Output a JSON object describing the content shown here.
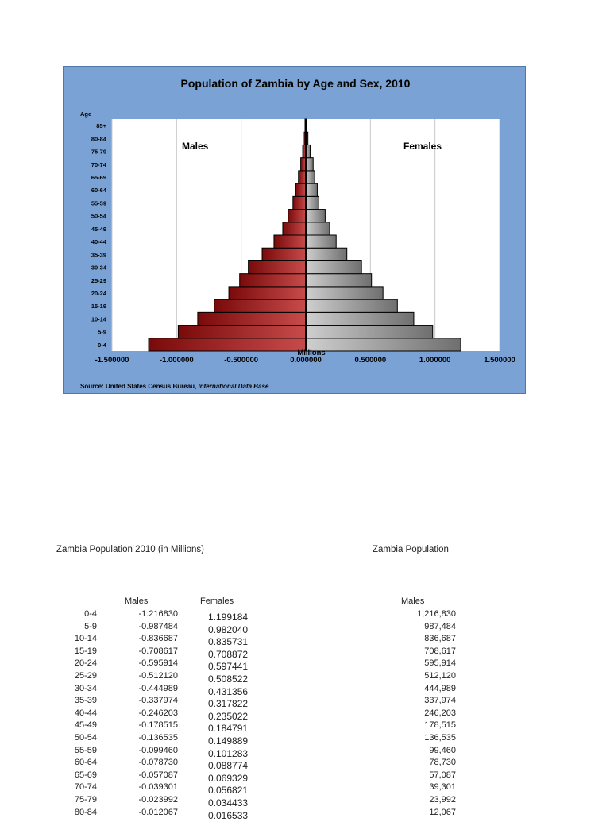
{
  "chart_data": {
    "type": "bar",
    "orientation": "horizontal",
    "title": "Population of Zambia by Age and Sex, 2010",
    "ylabel": "Age",
    "xlabel": "Millions",
    "categories": [
      "0-4",
      "5-9",
      "10-14",
      "15-19",
      "20-24",
      "25-29",
      "30-34",
      "35-39",
      "40-44",
      "45-49",
      "50-54",
      "55-59",
      "60-64",
      "65-69",
      "70-74",
      "75-79",
      "80-84",
      "85+"
    ],
    "series": [
      {
        "name": "Males",
        "color": "#8a1010",
        "values": [
          -1.21683,
          -0.987484,
          -0.836687,
          -0.708617,
          -0.595914,
          -0.51212,
          -0.444989,
          -0.337974,
          -0.246203,
          -0.178515,
          -0.136535,
          -0.09946,
          -0.07873,
          -0.057087,
          -0.039301,
          -0.023992,
          -0.012067,
          -0.006
        ]
      },
      {
        "name": "Females",
        "color": "#8c8c8c",
        "values": [
          1.199184,
          0.98204,
          0.835731,
          0.708872,
          0.597441,
          0.508522,
          0.431356,
          0.317822,
          0.235022,
          0.184791,
          0.149889,
          0.101283,
          0.088774,
          0.069329,
          0.056821,
          0.034433,
          0.016533,
          0.009
        ]
      }
    ],
    "xlim": [
      -1.5,
      1.5
    ],
    "xticks": [
      "-1.500000",
      "-1.000000",
      "-0.500000",
      "0.000000",
      "0.500000",
      "1.000000",
      "1.500000"
    ],
    "grid": true,
    "panel_labels": {
      "left": "Males",
      "right": "Females"
    },
    "source_prefix": "Source: United States Census Bureau, ",
    "source_italic": "International Data Base"
  },
  "sheet": {
    "title_left": "Zambia Population 2010 (in Millions)",
    "title_right": "Zambia Population",
    "header_males": "Males",
    "header_females": "Females",
    "header_males_right": "Males",
    "ages": [
      "0-4",
      "5-9",
      "10-14",
      "15-19",
      "20-24",
      "25-29",
      "30-34",
      "35-39",
      "40-44",
      "45-49",
      "50-54",
      "55-59",
      "60-64",
      "65-69",
      "70-74",
      "75-79",
      "80-84"
    ],
    "males": [
      "-1.216830",
      "-0.987484",
      "-0.836687",
      "-0.708617",
      "-0.595914",
      "-0.512120",
      "-0.444989",
      "-0.337974",
      "-0.246203",
      "-0.178515",
      "-0.136535",
      "-0.099460",
      "-0.078730",
      "-0.057087",
      "-0.039301",
      "-0.023992",
      "-0.012067"
    ],
    "females": [
      "1.199184",
      "0.982040",
      "0.835731",
      "0.708872",
      "0.597441",
      "0.508522",
      "0.431356",
      "0.317822",
      "0.235022",
      "0.184791",
      "0.149889",
      "0.101283",
      "0.088774",
      "0.069329",
      "0.056821",
      "0.034433",
      "0.016533"
    ],
    "males_counts": [
      "1,216,830",
      "987,484",
      "836,687",
      "708,617",
      "595,914",
      "512,120",
      "444,989",
      "337,974",
      "246,203",
      "178,515",
      "136,535",
      "99,460",
      "78,730",
      "57,087",
      "39,301",
      "23,992",
      "12,067"
    ]
  }
}
